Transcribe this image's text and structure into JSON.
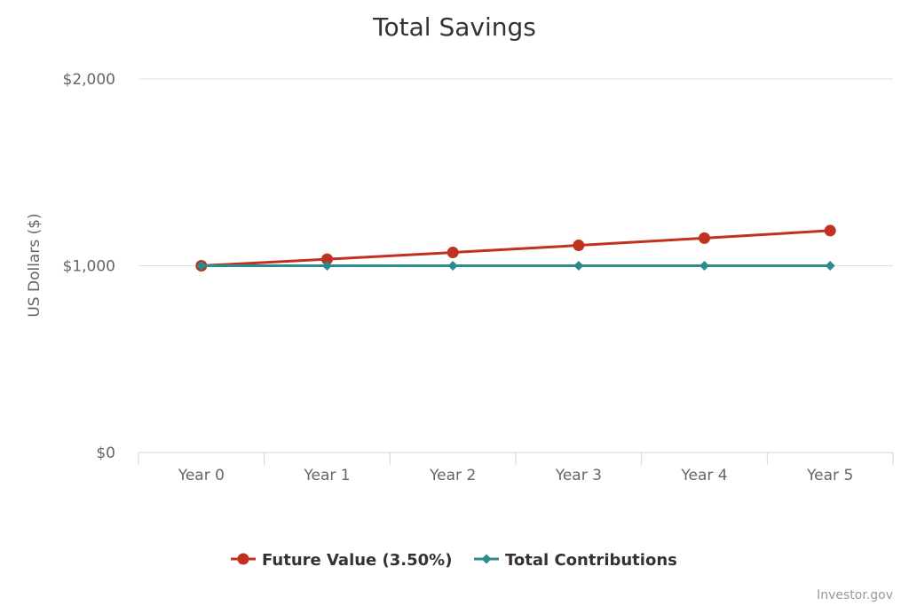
{
  "chart_data": {
    "type": "line",
    "title": "Total Savings",
    "ylabel": "US Dollars ($)",
    "xlabel": "",
    "categories": [
      "Year 0",
      "Year 1",
      "Year 2",
      "Year 3",
      "Year 4",
      "Year 5"
    ],
    "ylim": [
      0,
      2000
    ],
    "yticks": [
      0,
      1000,
      2000
    ],
    "ytick_labels": [
      "$0",
      "$1,000",
      "$2,000"
    ],
    "grid": true,
    "legend_position": "bottom-center",
    "series": [
      {
        "name": "Future Value (3.50%)",
        "color": "#c0311f",
        "marker": "circle",
        "values": [
          1000,
          1035,
          1071,
          1109,
          1148,
          1188
        ]
      },
      {
        "name": "Total Contributions",
        "color": "#2b8c8e",
        "marker": "diamond",
        "values": [
          1000,
          1000,
          1000,
          1000,
          1000,
          1000
        ]
      }
    ]
  },
  "credit": "Investor.gov"
}
